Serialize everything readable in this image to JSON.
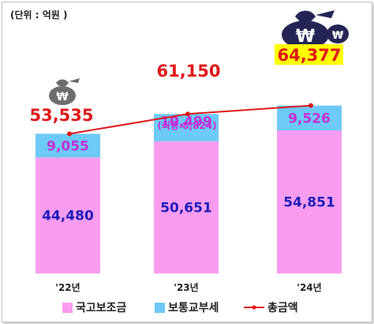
{
  "unit_label": "(단위 : 억원 )",
  "colors": {
    "subsidy": "#f99cf0",
    "grant": "#6dc9f5",
    "line": "#e0191b",
    "subsidy_text": "#1c1cba",
    "grant_text": "#c42fd6",
    "total_text": "#e0191b",
    "highlight_bg": "#ffff00"
  },
  "icons": [
    "money-bag-icon-small",
    "money-bag-icon-large"
  ],
  "chart_data": {
    "type": "bar",
    "stacked": true,
    "categories": [
      "'22년",
      "'23년",
      "'24년"
    ],
    "series": [
      {
        "name": "국고보조금",
        "values": [
          44480,
          50651,
          54851
        ],
        "labels": [
          "44,480",
          "50,651",
          "54,851"
        ]
      },
      {
        "name": "보통교부세",
        "values": [
          9055,
          10499,
          9526
        ],
        "labels": [
          "9,055",
          "10,499",
          "9,526"
        ]
      }
    ],
    "line": {
      "name": "총금액",
      "values": [
        53535,
        61150,
        64377
      ],
      "labels": [
        "53,535",
        "61,150",
        "64,377"
      ]
    },
    "annotations": [
      {
        "category": "'23년",
        "text": "(최종 8,824)"
      }
    ],
    "grid": false,
    "legend_position": "bottom",
    "highlight": {
      "category": "'24년",
      "series": "총금액"
    }
  },
  "legend": [
    {
      "label": "국고보조금"
    },
    {
      "label": "보통교부세"
    },
    {
      "label": "총금액"
    }
  ]
}
